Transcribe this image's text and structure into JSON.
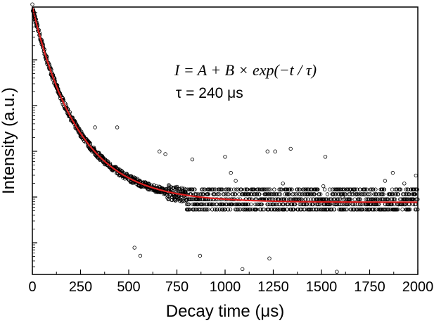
{
  "chart_data": {
    "type": "scatter",
    "title": "",
    "xlabel": "Decay time (μs)",
    "ylabel": "Intensity (a.u.)",
    "xlim": [
      0,
      2000
    ],
    "ylim": [
      0,
      1
    ],
    "x_ticks": [
      "0",
      "250",
      "500",
      "750",
      "1000",
      "1250",
      "1500",
      "1750",
      "2000"
    ],
    "y_scale": "log",
    "y_tick_labels_shown": false,
    "grid": false,
    "legend": "none",
    "annotations": {
      "equation": "I = A + B × exp(−t / τ)",
      "tau": "τ = 240 μs"
    },
    "fit": {
      "model": "I = A + B × exp(−t / τ)",
      "tau_us": 240,
      "color": "#e02020"
    },
    "series": [
      {
        "marker": "open-circle",
        "color": "#000000",
        "description_points": "dense measured decay, x from 0 to 2000 μs",
        "values": [
          [
            0,
            1.0
          ],
          [
            100,
            0.87
          ],
          [
            200,
            0.74
          ],
          [
            300,
            0.63
          ],
          [
            400,
            0.52
          ],
          [
            500,
            0.44
          ],
          [
            600,
            0.37
          ],
          [
            700,
            0.33
          ],
          [
            800,
            0.3
          ],
          [
            900,
            0.29
          ],
          [
            1000,
            0.28
          ],
          [
            1250,
            0.27
          ],
          [
            1500,
            0.27
          ],
          [
            1750,
            0.27
          ],
          [
            2000,
            0.27
          ]
        ]
      }
    ],
    "outliers": [
      [
        325,
        0.55
      ],
      [
        440,
        0.55
      ],
      [
        660,
        0.46
      ],
      [
        690,
        0.45
      ],
      [
        830,
        0.43
      ],
      [
        1000,
        0.44
      ],
      [
        1030,
        0.38
      ],
      [
        1055,
        0.35
      ],
      [
        1220,
        0.46
      ],
      [
        1260,
        0.46
      ],
      [
        1300,
        0.34
      ],
      [
        1340,
        0.47
      ],
      [
        1510,
        0.33
      ],
      [
        1520,
        0.44
      ],
      [
        1610,
        0.29
      ],
      [
        1660,
        0.31
      ],
      [
        1830,
        0.35
      ],
      [
        1870,
        0.38
      ],
      [
        1930,
        0.34
      ],
      [
        1990,
        0.37
      ],
      [
        530,
        0.1
      ],
      [
        560,
        0.07
      ],
      [
        870,
        0.07
      ],
      [
        1090,
        0.02
      ],
      [
        1230,
        0.06
      ],
      [
        1580,
        0.01
      ]
    ]
  }
}
